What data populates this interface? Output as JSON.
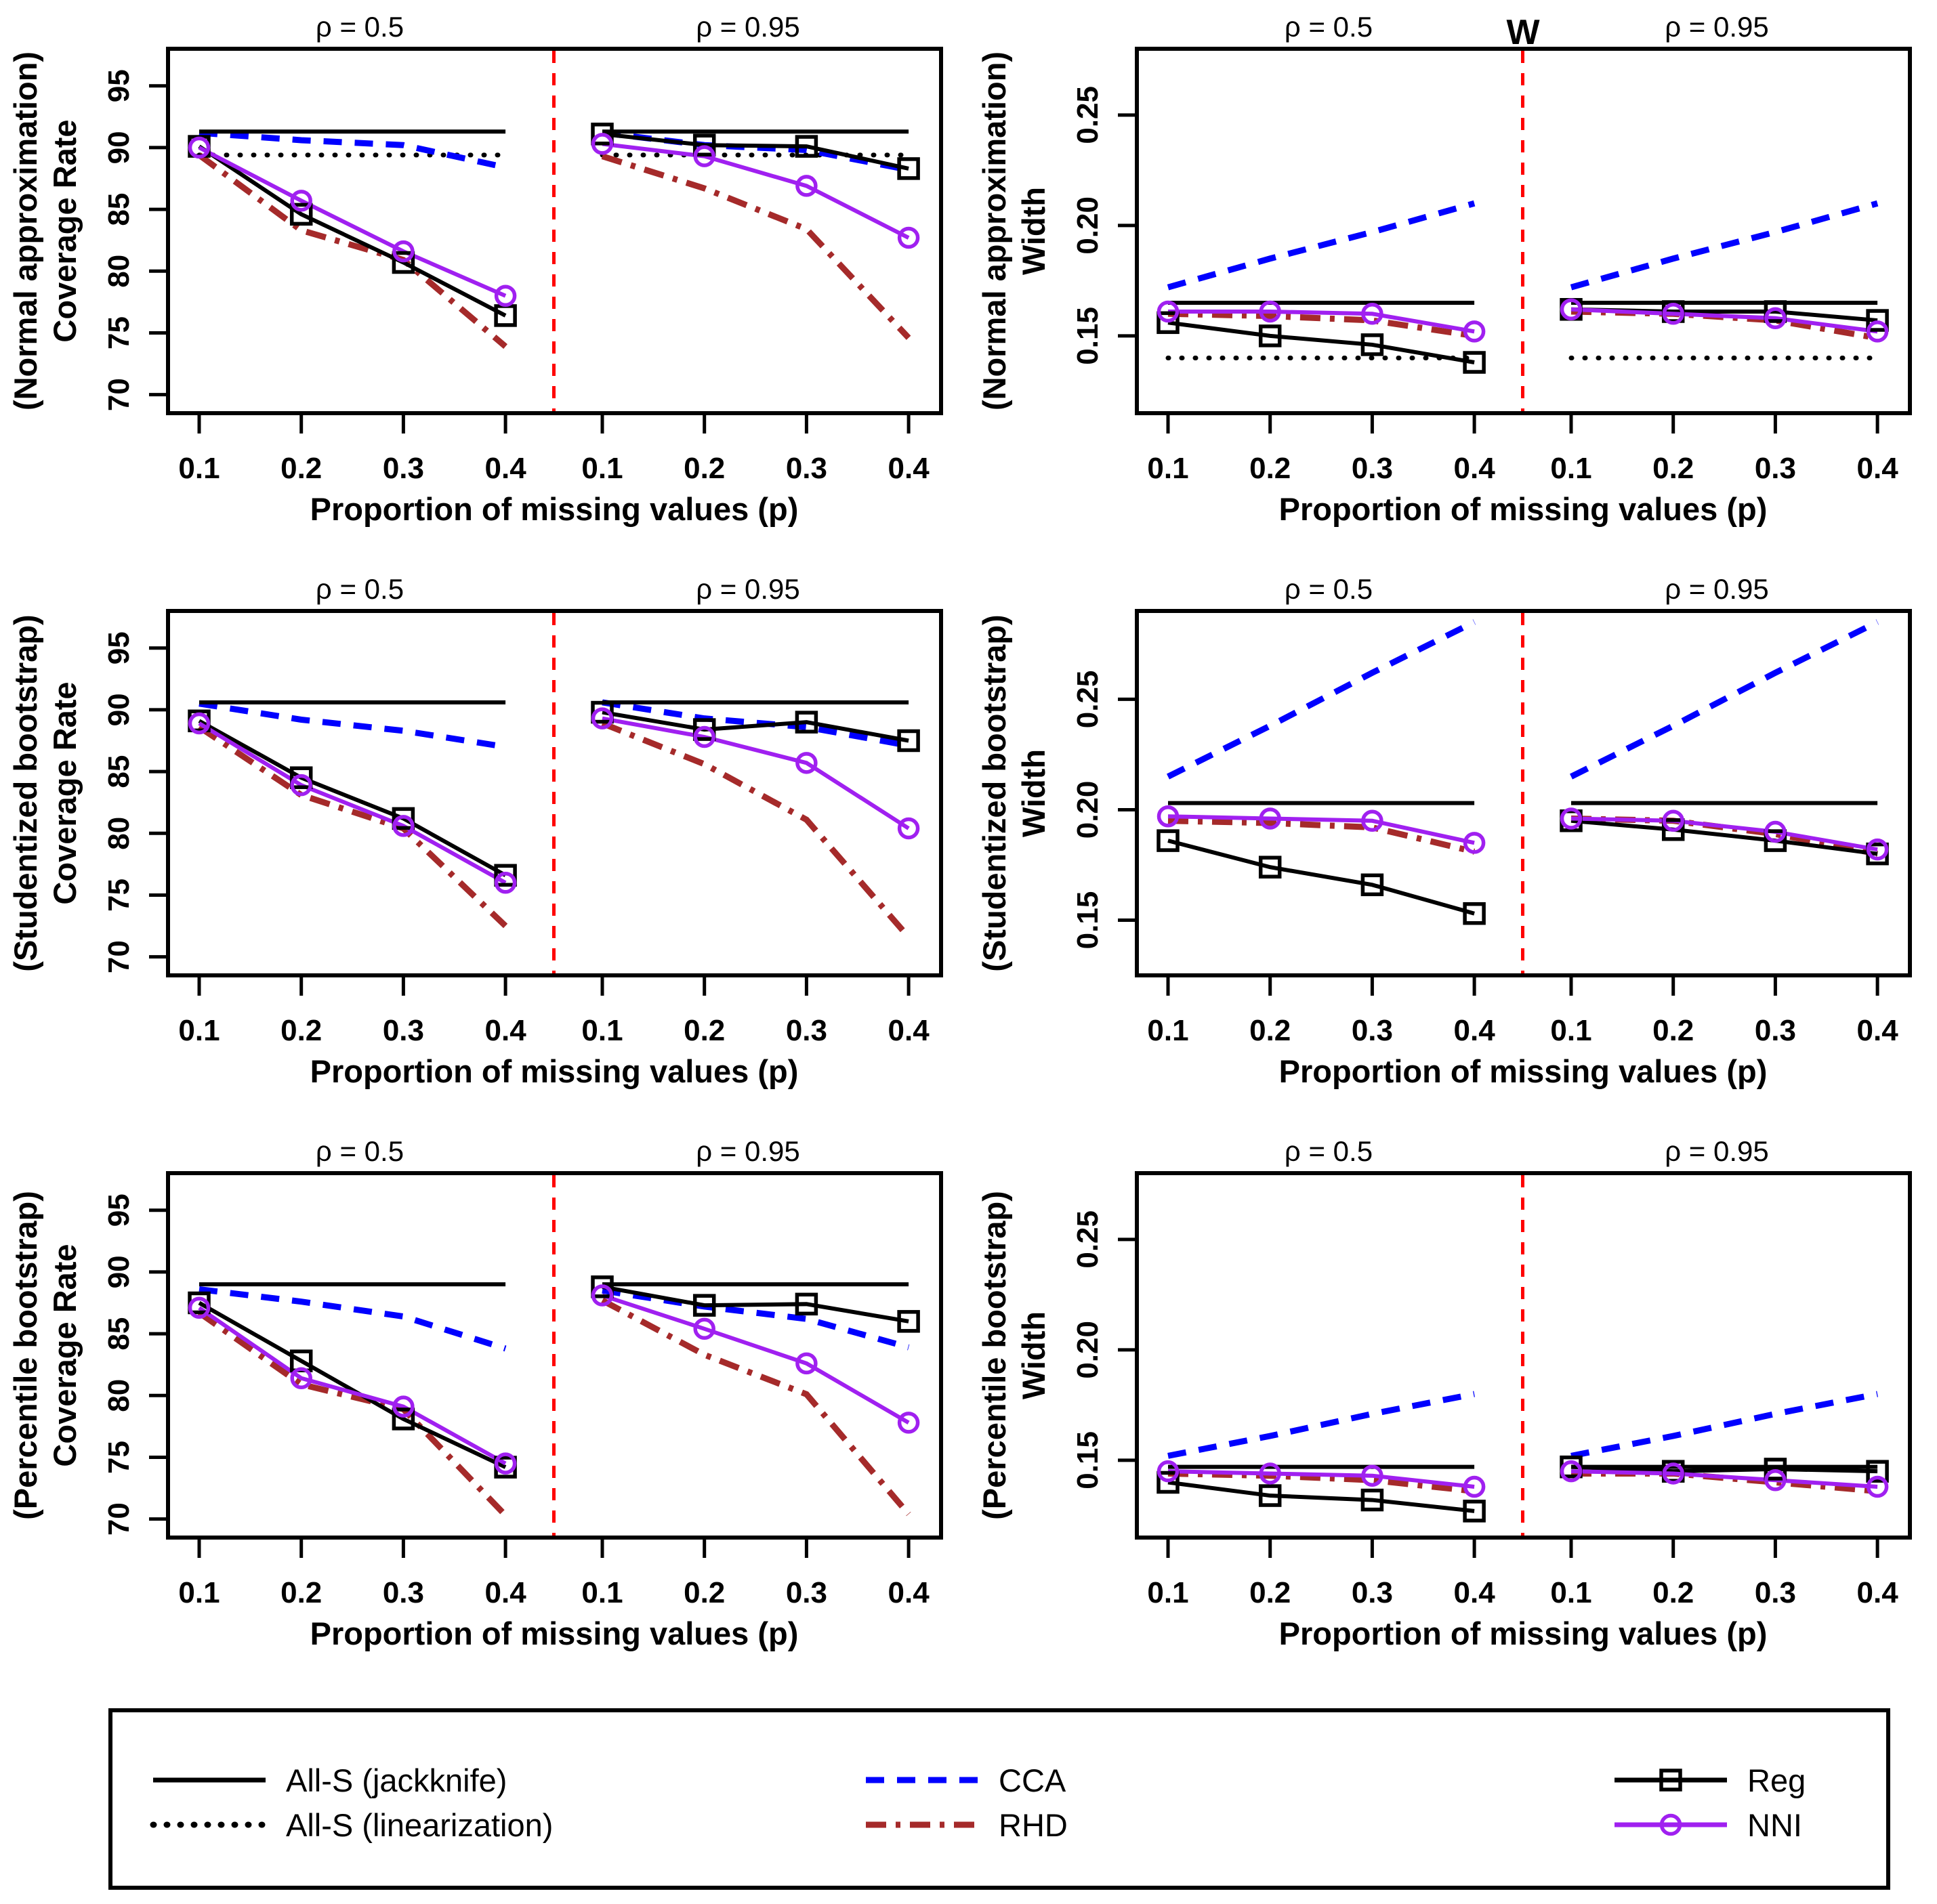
{
  "title": "W",
  "shared": {
    "xlabel": "Proportion of missing values (p)",
    "rho_labels": [
      "ρ = 0.5",
      "ρ = 0.95"
    ],
    "x_values": [
      0.1,
      0.2,
      0.3,
      0.4
    ],
    "x_tick_labels": [
      "0.1",
      "0.2",
      "0.3",
      "0.4"
    ]
  },
  "colors": {
    "black": "#000000",
    "blue": "#0000FF",
    "purple": "#A020F0",
    "darkred": "#A52A2A",
    "divider_red": "#FF0000"
  },
  "legend": {
    "entries": [
      {
        "key": "jackknife",
        "label": "All-S (jackknife)",
        "style": "solid",
        "color": "#000000",
        "marker": null
      },
      {
        "key": "linearization",
        "label": "All-S (linearization)",
        "style": "dotted",
        "color": "#000000",
        "marker": null
      },
      {
        "key": "cca",
        "label": "CCA",
        "style": "dashed",
        "color": "#0000FF",
        "marker": null
      },
      {
        "key": "rhd",
        "label": "RHD",
        "style": "dashdot",
        "color": "#A52A2A",
        "marker": null
      },
      {
        "key": "reg",
        "label": "Reg",
        "style": "solid",
        "color": "#000000",
        "marker": "square"
      },
      {
        "key": "nni",
        "label": "NNI",
        "style": "solid",
        "color": "#A020F0",
        "marker": "circle"
      }
    ]
  },
  "chart_data": [
    {
      "type": "line",
      "ylabel_line1": "(Normal approximation)",
      "ylabel_line2": "Coverage Rate",
      "yticks": [
        70,
        75,
        80,
        85,
        90,
        95
      ],
      "ytick_labels": [
        "70",
        "75",
        "80",
        "85",
        "90",
        "95"
      ],
      "ylim": [
        68.5,
        98.0
      ],
      "x": [
        0.1,
        0.2,
        0.3,
        0.4
      ],
      "subpanels": [
        {
          "rho": "0.5",
          "series": {
            "jackknife": [
              91.3,
              91.3,
              91.3,
              91.3
            ],
            "linearization": [
              89.4,
              89.4,
              89.4,
              89.4
            ],
            "cca": [
              91.2,
              90.6,
              90.2,
              88.4
            ],
            "rhd": [
              89.4,
              83.3,
              80.9,
              73.9
            ],
            "reg": [
              90.1,
              84.6,
              80.7,
              76.4
            ],
            "nni": [
              90.0,
              85.7,
              81.6,
              78.0
            ]
          }
        },
        {
          "rho": "0.95",
          "series": {
            "jackknife": [
              91.3,
              91.3,
              91.3,
              91.3
            ],
            "linearization": [
              89.4,
              89.4,
              89.4,
              89.4
            ],
            "cca": [
              91.2,
              90.2,
              89.8,
              88.2
            ],
            "rhd": [
              89.3,
              86.7,
              83.4,
              74.6
            ],
            "reg": [
              91.1,
              90.2,
              90.1,
              88.3
            ],
            "nni": [
              90.3,
              89.3,
              86.9,
              82.7
            ]
          }
        }
      ]
    },
    {
      "type": "line",
      "ylabel_line1": "(Normal approximation)",
      "ylabel_line2": "Width",
      "yticks": [
        0.15,
        0.2,
        0.25
      ],
      "ytick_labels": [
        "0.15",
        "0.20",
        "0.25"
      ],
      "ylim": [
        0.115,
        0.28
      ],
      "x": [
        0.1,
        0.2,
        0.3,
        0.4
      ],
      "subpanels": [
        {
          "rho": "0.5",
          "series": {
            "jackknife": [
              0.165,
              0.165,
              0.165,
              0.165
            ],
            "linearization": [
              0.14,
              0.14,
              0.14,
              0.14
            ],
            "cca": [
              0.172,
              0.185,
              0.197,
              0.21
            ],
            "rhd": [
              0.16,
              0.159,
              0.157,
              0.15
            ],
            "reg": [
              0.156,
              0.15,
              0.146,
              0.138
            ],
            "nni": [
              0.161,
              0.161,
              0.16,
              0.152
            ]
          }
        },
        {
          "rho": "0.95",
          "series": {
            "jackknife": [
              0.165,
              0.165,
              0.165,
              0.165
            ],
            "linearization": [
              0.14,
              0.14,
              0.14,
              0.14
            ],
            "cca": [
              0.172,
              0.185,
              0.197,
              0.21
            ],
            "rhd": [
              0.161,
              0.16,
              0.157,
              0.149
            ],
            "reg": [
              0.162,
              0.161,
              0.161,
              0.157
            ],
            "nni": [
              0.162,
              0.16,
              0.158,
              0.152
            ]
          }
        }
      ]
    },
    {
      "type": "line",
      "ylabel_line1": "(Studentized bootstrap)",
      "ylabel_line2": "Coverage Rate",
      "yticks": [
        70,
        75,
        80,
        85,
        90,
        95
      ],
      "ytick_labels": [
        "70",
        "75",
        "80",
        "85",
        "90",
        "95"
      ],
      "ylim": [
        68.5,
        98.0
      ],
      "x": [
        0.1,
        0.2,
        0.3,
        0.4
      ],
      "subpanels": [
        {
          "rho": "0.5",
          "series": {
            "jackknife": [
              90.6,
              90.6,
              90.6,
              90.6
            ],
            "cca": [
              90.5,
              89.2,
              88.3,
              87.0
            ],
            "rhd": [
              88.6,
              83.1,
              80.4,
              72.5
            ],
            "reg": [
              89.1,
              84.5,
              81.2,
              76.6
            ],
            "nni": [
              88.9,
              83.9,
              80.6,
              76.0
            ]
          }
        },
        {
          "rho": "0.95",
          "series": {
            "jackknife": [
              90.6,
              90.6,
              90.6,
              90.6
            ],
            "cca": [
              90.6,
              89.3,
              88.6,
              87.1
            ],
            "rhd": [
              88.9,
              85.6,
              81.1,
              71.6
            ],
            "reg": [
              89.8,
              88.4,
              89.0,
              87.5
            ],
            "nni": [
              89.3,
              87.8,
              85.7,
              80.4
            ]
          }
        }
      ]
    },
    {
      "type": "line",
      "ylabel_line1": "(Studentized bootstrap)",
      "ylabel_line2": "Width",
      "yticks": [
        0.15,
        0.2,
        0.25
      ],
      "ytick_labels": [
        "0.15",
        "0.20",
        "0.25"
      ],
      "ylim": [
        0.125,
        0.29
      ],
      "x": [
        0.1,
        0.2,
        0.3,
        0.4
      ],
      "subpanels": [
        {
          "rho": "0.5",
          "series": {
            "jackknife": [
              0.203,
              0.203,
              0.203,
              0.203
            ],
            "cca": [
              0.215,
              0.238,
              0.262,
              0.285
            ],
            "rhd": [
              0.195,
              0.194,
              0.192,
              0.181
            ],
            "reg": [
              0.186,
              0.174,
              0.166,
              0.153
            ],
            "nni": [
              0.197,
              0.196,
              0.195,
              0.185
            ]
          }
        },
        {
          "rho": "0.95",
          "series": {
            "jackknife": [
              0.203,
              0.203,
              0.203,
              0.203
            ],
            "cca": [
              0.215,
              0.238,
              0.262,
              0.285
            ],
            "rhd": [
              0.196,
              0.195,
              0.189,
              0.18
            ],
            "reg": [
              0.195,
              0.191,
              0.186,
              0.18
            ],
            "nni": [
              0.196,
              0.195,
              0.19,
              0.182
            ]
          }
        }
      ]
    },
    {
      "type": "line",
      "ylabel_line1": "(Percentile bootstrap)",
      "ylabel_line2": "Coverage Rate",
      "yticks": [
        70,
        75,
        80,
        85,
        90,
        95
      ],
      "ytick_labels": [
        "70",
        "75",
        "80",
        "85",
        "90",
        "95"
      ],
      "ylim": [
        68.5,
        98.0
      ],
      "x": [
        0.1,
        0.2,
        0.3,
        0.4
      ],
      "subpanels": [
        {
          "rho": "0.5",
          "series": {
            "jackknife": [
              89.0,
              89.0,
              89.0,
              89.0
            ],
            "cca": [
              88.6,
              87.6,
              86.4,
              83.8
            ],
            "rhd": [
              86.7,
              80.9,
              78.9,
              70.3
            ],
            "reg": [
              87.5,
              82.8,
              78.1,
              74.2
            ],
            "nni": [
              87.1,
              81.4,
              79.1,
              74.5
            ]
          }
        },
        {
          "rho": "0.95",
          "series": {
            "jackknife": [
              89.0,
              89.0,
              89.0,
              89.0
            ],
            "cca": [
              88.5,
              87.2,
              86.2,
              83.9
            ],
            "rhd": [
              87.7,
              83.3,
              80.1,
              70.4
            ],
            "reg": [
              88.8,
              87.3,
              87.4,
              86.0
            ],
            "nni": [
              88.1,
              85.4,
              82.6,
              77.8
            ]
          }
        }
      ]
    },
    {
      "type": "line",
      "ylabel_line1": "(Percentile bootstrap)",
      "ylabel_line2": "Width",
      "yticks": [
        0.15,
        0.2,
        0.25
      ],
      "ytick_labels": [
        "0.15",
        "0.20",
        "0.25"
      ],
      "ylim": [
        0.115,
        0.28
      ],
      "x": [
        0.1,
        0.2,
        0.3,
        0.4
      ],
      "subpanels": [
        {
          "rho": "0.5",
          "series": {
            "jackknife": [
              0.147,
              0.147,
              0.147,
              0.147
            ],
            "cca": [
              0.152,
              0.161,
              0.171,
              0.18
            ],
            "rhd": [
              0.144,
              0.143,
              0.141,
              0.136
            ],
            "reg": [
              0.14,
              0.134,
              0.132,
              0.127
            ],
            "nni": [
              0.145,
              0.144,
              0.143,
              0.138
            ]
          }
        },
        {
          "rho": "0.95",
          "series": {
            "jackknife": [
              0.147,
              0.147,
              0.147,
              0.147
            ],
            "cca": [
              0.152,
              0.161,
              0.171,
              0.18
            ],
            "rhd": [
              0.144,
              0.144,
              0.14,
              0.136
            ],
            "reg": [
              0.147,
              0.145,
              0.146,
              0.145
            ],
            "nni": [
              0.145,
              0.144,
              0.141,
              0.138
            ]
          }
        }
      ]
    }
  ]
}
